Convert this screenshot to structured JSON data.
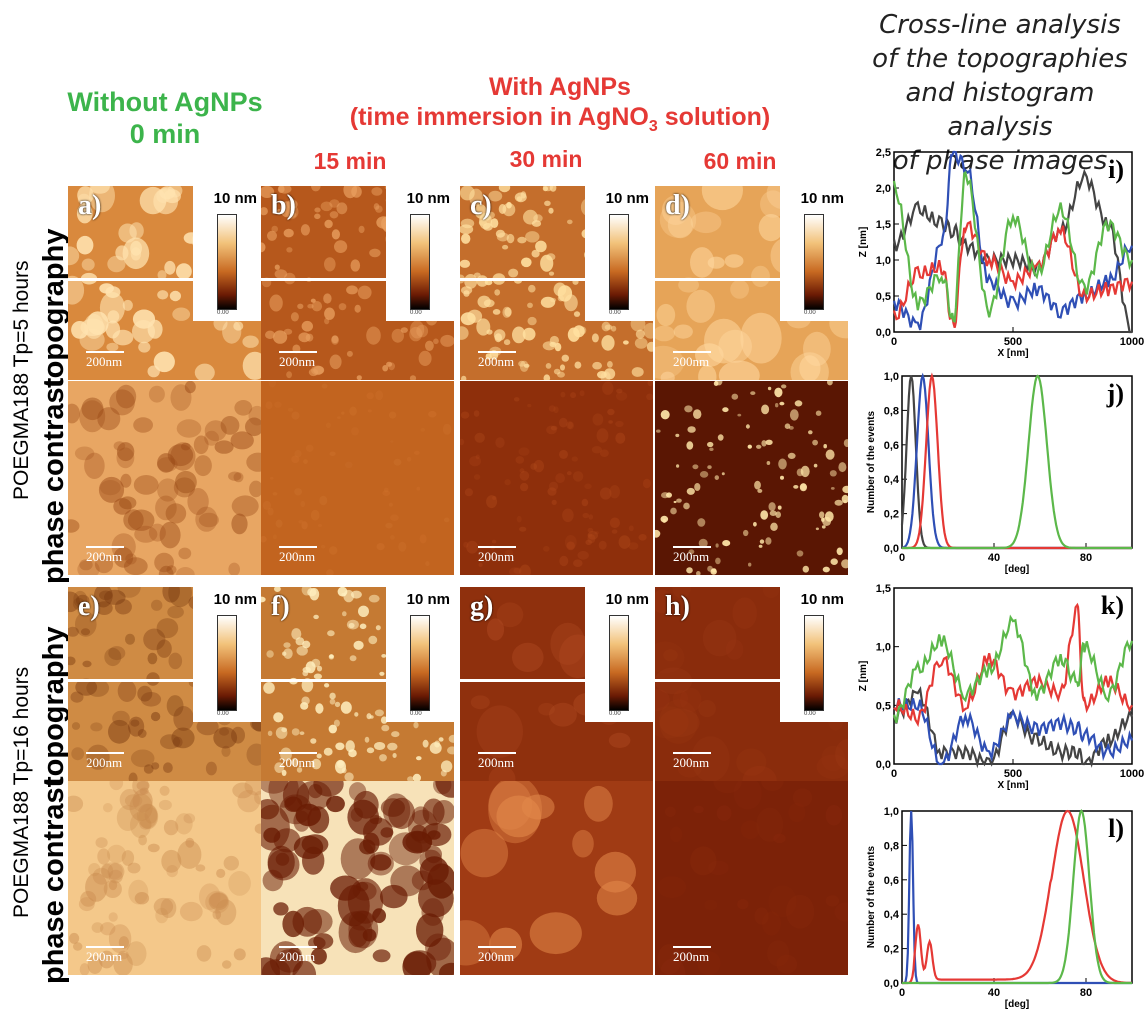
{
  "header": {
    "without_line1": "Without AgNPs",
    "without_line2": "0 min",
    "with_line1": "With AgNPs",
    "with_line2_prefix": "(time immersion in AgNO",
    "with_line2_sub": "3",
    "with_line2_suffix": " solution)",
    "times": [
      "15 min",
      "30 min",
      "60 min"
    ],
    "right_title_lines": [
      "Cross-line analysis",
      "of the topographies",
      "and histogram analysis",
      "of phase images"
    ]
  },
  "row_labels": {
    "group1": "POEGMA188 Tp=5 hours",
    "group2": "POEGMA188 Tp=16 hours",
    "topography": "topography",
    "phase": "phase contrast"
  },
  "panels": {
    "topo_letters": [
      "a)",
      "b)",
      "c)",
      "d)",
      "e)",
      "f)",
      "g)",
      "h)"
    ],
    "colorbar_top": "10 nm",
    "colorbar_zero": "0.00",
    "scalebar": "200nm"
  },
  "colors": {
    "black_series": "#444444",
    "blue_series": "#2f4fb5",
    "red_series": "#e53935",
    "green_series": "#5cb84a",
    "afm_light": "#f3b567",
    "afm_dark": "#7a2a08"
  },
  "chart_data": [
    {
      "type": "line",
      "letter": "i)",
      "xlabel": "X [nm]",
      "ylabel": "Z [nm]",
      "xlim": [
        0,
        1000
      ],
      "ylim": [
        0,
        2.5
      ],
      "xticks": [
        "0",
        "500",
        "1000"
      ],
      "yticks": [
        "0,0",
        "0,5",
        "1,0",
        "1,5",
        "2,0",
        "2,5"
      ],
      "x": [
        0,
        100,
        200,
        250,
        300,
        400,
        500,
        600,
        700,
        800,
        900,
        1000
      ],
      "series": [
        {
          "color": "black",
          "values": [
            1.2,
            1.7,
            1.5,
            1.4,
            1.2,
            1.0,
            1.0,
            0.9,
            1.4,
            2.15,
            1.5,
            0.0
          ]
        },
        {
          "color": "blue",
          "values": [
            0.4,
            0.1,
            1.2,
            2.5,
            2.3,
            0.7,
            0.4,
            0.6,
            0.3,
            0.5,
            0.7,
            1.2
          ]
        },
        {
          "color": "red",
          "values": [
            0.2,
            0.8,
            0.9,
            0.1,
            1.5,
            1.0,
            0.7,
            0.9,
            1.4,
            0.5,
            0.6,
            0.7
          ]
        },
        {
          "color": "green",
          "values": [
            2.0,
            0.4,
            0.8,
            0.2,
            2.2,
            0.3,
            1.6,
            0.8,
            1.7,
            0.6,
            1.5,
            1.0
          ]
        }
      ]
    },
    {
      "type": "line",
      "letter": "j)",
      "xlabel": "[deg]",
      "ylabel": "Number of the events",
      "xlim": [
        0,
        100
      ],
      "ylim": [
        0,
        1.0
      ],
      "xticks": [
        "0",
        "40",
        "80"
      ],
      "yticks": [
        "0,0",
        "0,2",
        "0,4",
        "0,6",
        "0,8",
        "1,0"
      ],
      "series": [
        {
          "color": "black",
          "peak": 4,
          "width": 2
        },
        {
          "color": "blue",
          "peak": 9,
          "width": 2.5
        },
        {
          "color": "red",
          "peak": 13,
          "width": 2.5
        },
        {
          "color": "green",
          "peak": 59,
          "width": 4
        }
      ]
    },
    {
      "type": "line",
      "letter": "k)",
      "xlabel": "X [nm]",
      "ylabel": "Z [nm]",
      "xlim": [
        0,
        1000
      ],
      "ylim": [
        0,
        1.5
      ],
      "xticks": [
        "0",
        "500",
        "1000"
      ],
      "yticks": [
        "0,0",
        "0,5",
        "1,0",
        "1,5"
      ],
      "x": [
        0,
        100,
        200,
        300,
        400,
        500,
        600,
        700,
        770,
        800,
        900,
        1000
      ],
      "series": [
        {
          "color": "black",
          "values": [
            0.4,
            0.6,
            0.1,
            0.1,
            0.0,
            0.4,
            0.2,
            0.1,
            0.1,
            0.0,
            0.2,
            0.4
          ]
        },
        {
          "color": "blue",
          "values": [
            0.5,
            0.5,
            0.0,
            0.4,
            0.1,
            0.4,
            0.3,
            0.35,
            0.3,
            0.25,
            0.1,
            0.2
          ]
        },
        {
          "color": "red",
          "values": [
            0.5,
            0.4,
            0.9,
            0.5,
            0.9,
            0.6,
            0.7,
            0.6,
            1.3,
            0.5,
            0.7,
            0.5
          ]
        },
        {
          "color": "green",
          "values": [
            0.4,
            0.8,
            1.05,
            0.6,
            0.8,
            1.2,
            0.6,
            0.9,
            0.7,
            1.0,
            0.6,
            1.05
          ]
        }
      ]
    },
    {
      "type": "line",
      "letter": "l)",
      "xlabel": "[deg]",
      "ylabel": "Number of the events",
      "xlim": [
        0,
        100
      ],
      "ylim": [
        0,
        1.0
      ],
      "xticks": [
        "0",
        "40",
        "80"
      ],
      "yticks": [
        "0,0",
        "0,2",
        "0,4",
        "0,6",
        "0,8",
        "1,0"
      ],
      "series": [
        {
          "color": "blue",
          "peak": 4,
          "width": 0.8
        },
        {
          "color": "red",
          "peak": 72,
          "width": 7
        },
        {
          "color": "green",
          "peak": 78,
          "width": 3.5
        }
      ]
    }
  ]
}
